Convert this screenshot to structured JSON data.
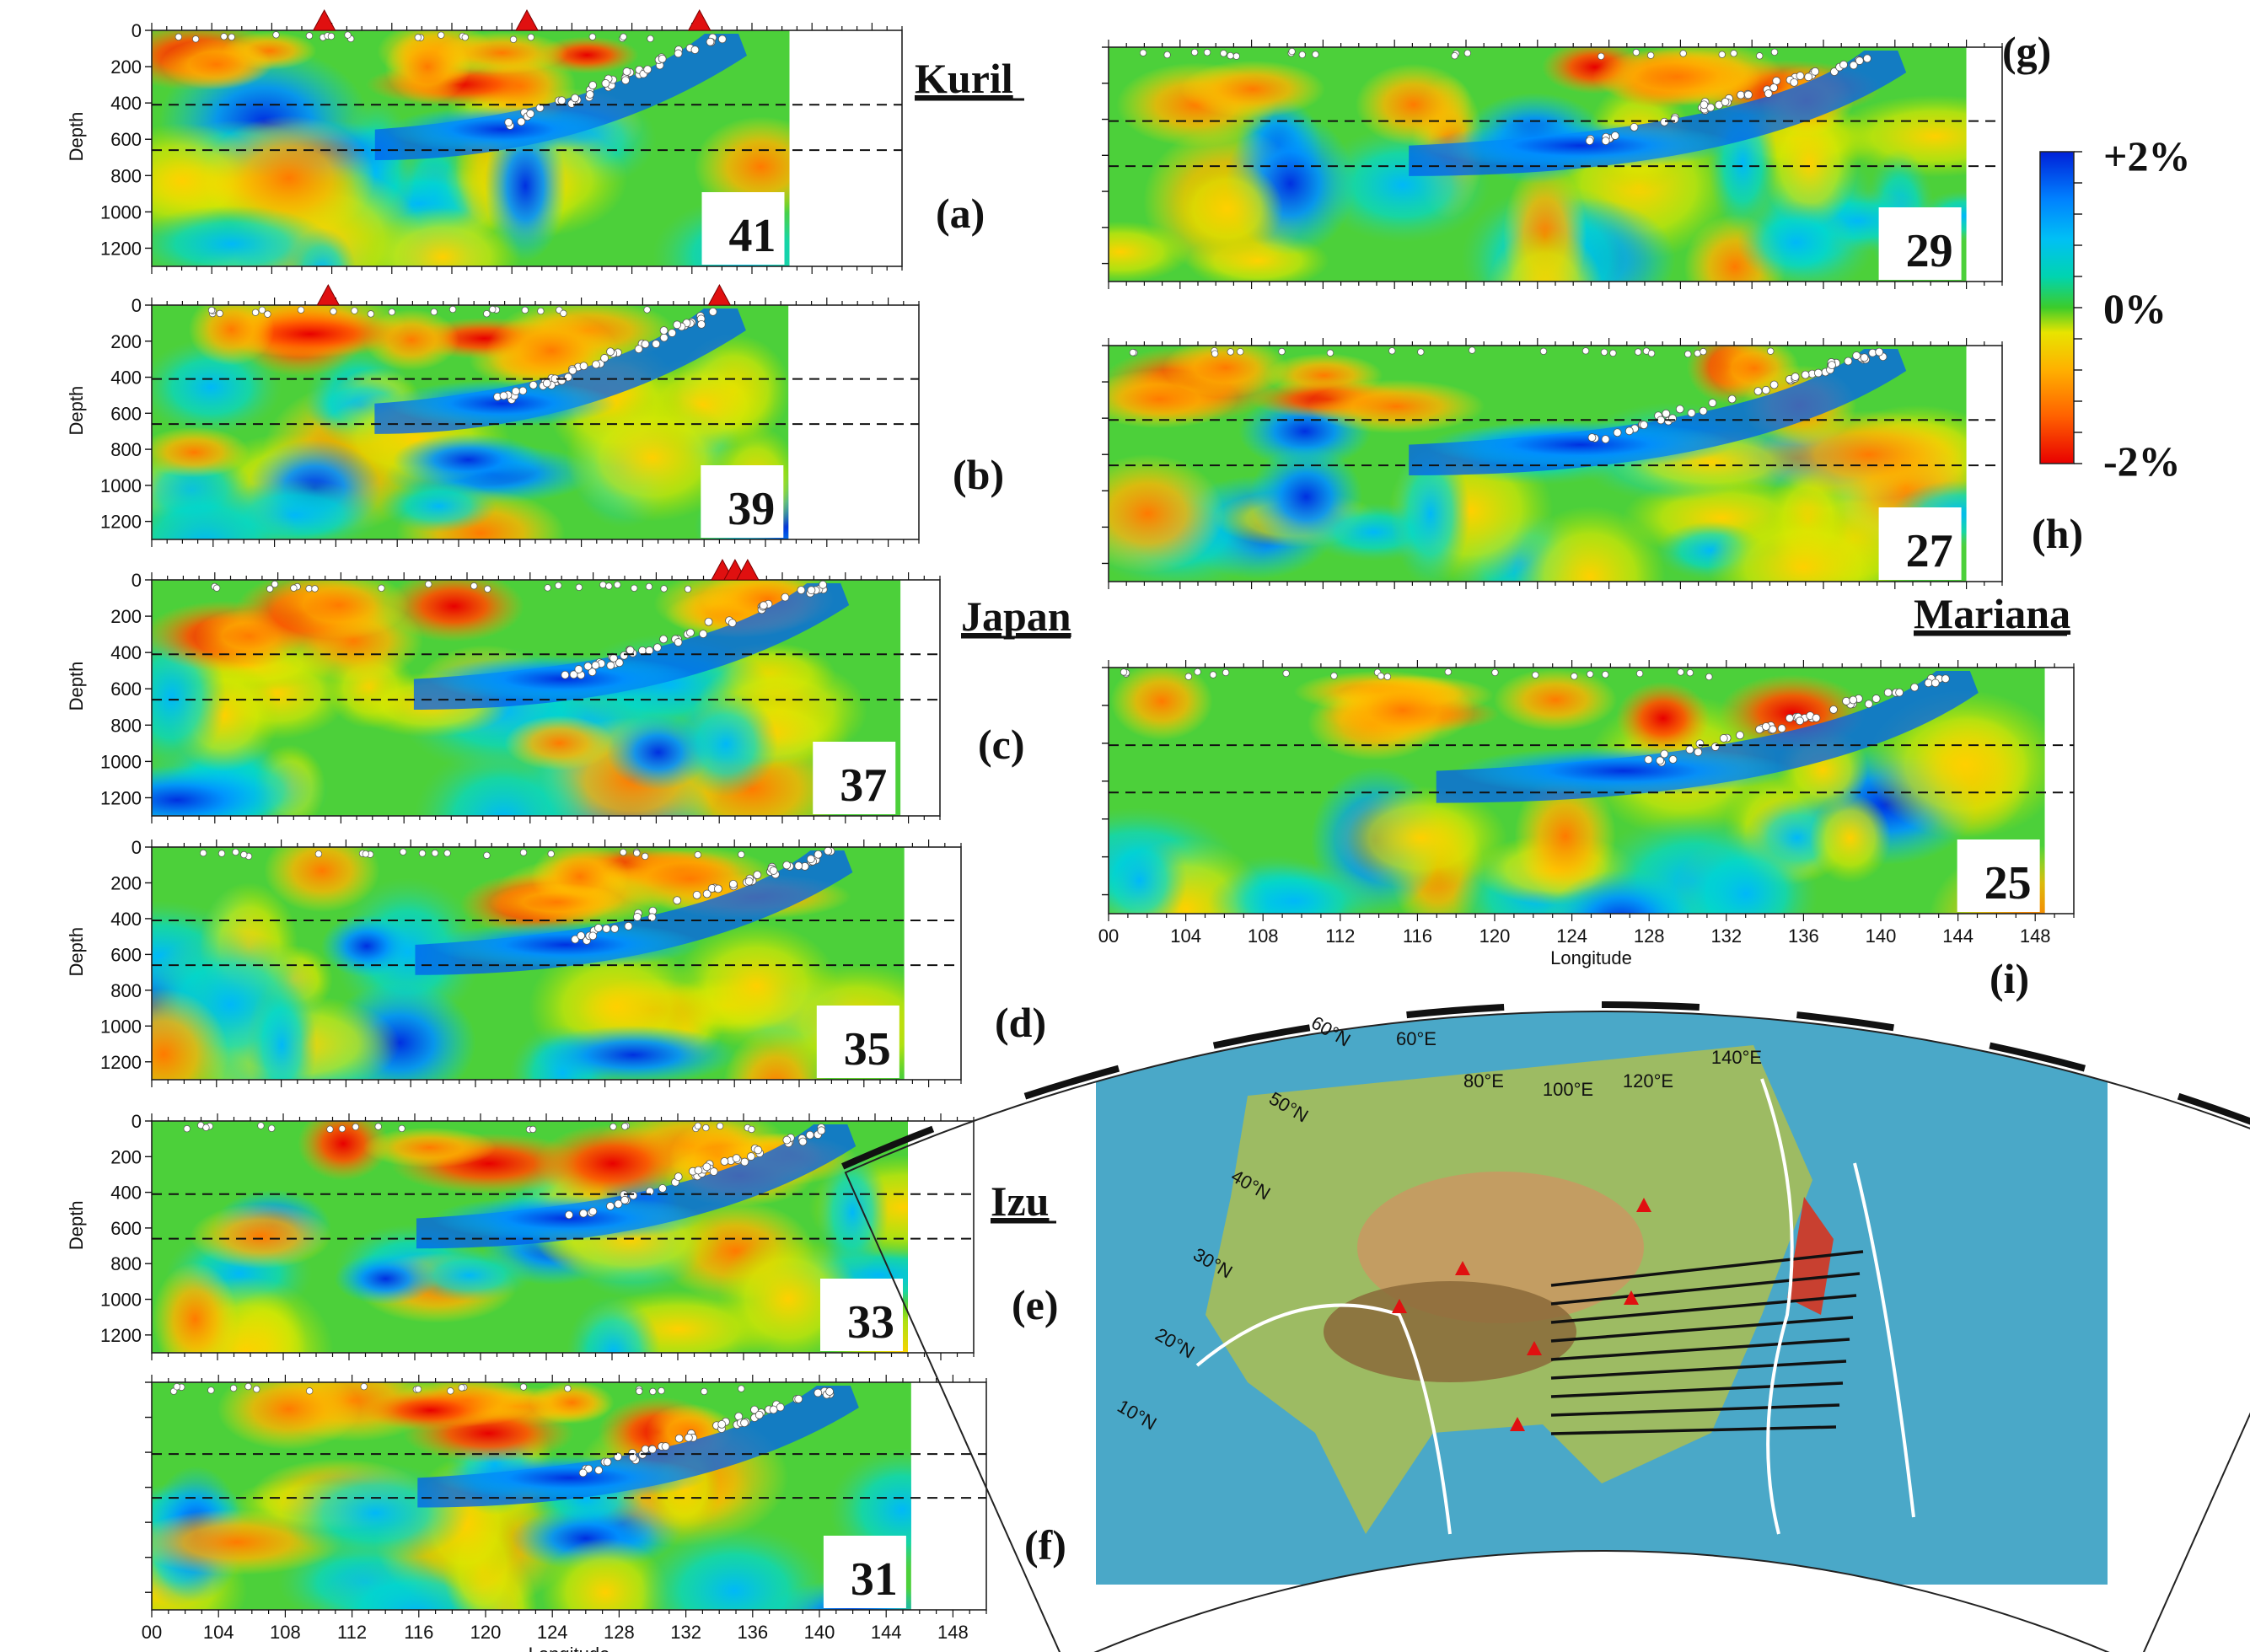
{
  "panels": [
    {
      "id": "a",
      "label": "(a)",
      "lat": "41",
      "region": "Kuril",
      "volcano_lons": [
        111.5,
        125,
        136.5
      ]
    },
    {
      "id": "b",
      "label": "(b)",
      "lat": "39",
      "region": "",
      "volcano_lons": [
        111.5,
        137
      ]
    },
    {
      "id": "c",
      "label": "(c)",
      "lat": "37",
      "region": "Japan",
      "volcano_lons": [
        136.2,
        137,
        137.8
      ]
    },
    {
      "id": "d",
      "label": "(d)",
      "lat": "35",
      "region": "",
      "volcano_lons": []
    },
    {
      "id": "e",
      "label": "(e)",
      "lat": "33",
      "region": "Izu",
      "volcano_lons": []
    },
    {
      "id": "f",
      "label": "(f)",
      "lat": "31",
      "region": "",
      "volcano_lons": []
    },
    {
      "id": "g",
      "label": "(g)",
      "lat": "29",
      "region": "",
      "volcano_lons": []
    },
    {
      "id": "h",
      "label": "(h)",
      "lat": "27",
      "region": "",
      "volcano_lons": []
    },
    {
      "id": "i",
      "label": "(i)",
      "lat": "25",
      "region": "Mariana",
      "volcano_lons": []
    }
  ],
  "axes": {
    "ylabel": "Depth",
    "xlabel": "Longitude",
    "depth_ticks": [
      "0",
      "200",
      "400",
      "600",
      "800",
      "1000",
      "1200"
    ],
    "lon_ticks": [
      "00",
      "104",
      "108",
      "112",
      "116",
      "120",
      "124",
      "128",
      "132",
      "136",
      "140",
      "144",
      "148"
    ],
    "depth_range": [
      0,
      1300
    ],
    "lon_range": [
      100,
      150
    ],
    "discontinuities_km": [
      410,
      660
    ]
  },
  "colorbar": {
    "top_label": "+2%",
    "mid_label": "0%",
    "bottom_label": "-2%",
    "colors": [
      "#e80000",
      "#ff5a00",
      "#ff9c00",
      "#ffd800",
      "#cfe800",
      "#3ccc2a",
      "#00d0a0",
      "#00c8f0",
      "#0090ff",
      "#0030e0"
    ]
  },
  "top_text": "",
  "map": {
    "lat_labels": [
      "60°N",
      "50°N",
      "40°N",
      "30°N",
      "20°N",
      "10°N"
    ],
    "lon_labels": [
      "60°E",
      "80°E",
      "100°E",
      "120°E",
      "140°E"
    ],
    "profile_lats": [
      41,
      39,
      37,
      35,
      33,
      31,
      29,
      27,
      25
    ]
  }
}
